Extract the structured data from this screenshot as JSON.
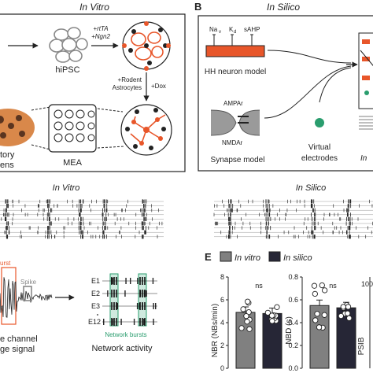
{
  "panel_a": {
    "title": "In Vitro",
    "hipsc_label": "hiPSC",
    "arrow1_label_1": "+rtTA",
    "arrow1_label_2": "+Ngn2",
    "arrow2_label_1": "+Rodent",
    "arrow2_label_2": "Astrocytes",
    "arrow2_label_3": "+Dox",
    "mea_label": "MEA",
    "left_label_1": "tory",
    "left_label_2": "ens"
  },
  "panel_b": {
    "letter": "B",
    "title": "In Silico",
    "channel_na": "Na",
    "channel_na_sub": "v",
    "channel_k": "K",
    "channel_k_sub": "d",
    "channel_sahp": "sAHP",
    "hh_label": "HH neuron model",
    "ampar": "AMPAr",
    "nmdar": "NMDAr",
    "synapse_label": "Synapse model",
    "virtual_1": "Virtual",
    "virtual_2": "electrodes",
    "right_partial": "In"
  },
  "raster": {
    "in_vitro_title": "In Vitro",
    "in_silico_title": "In Silico"
  },
  "panel_d": {
    "burst_label": "urst",
    "spike_label": "Spike",
    "electrodes": [
      "E1",
      "E2",
      "E3",
      "E12"
    ],
    "network_bursts": "Network bursts",
    "channel_label_1": "e channel",
    "channel_label_2": "ge signal",
    "network_activity": "Network activity"
  },
  "panel_e": {
    "letter": "E",
    "legend_in_vitro": "In vitro",
    "legend_in_silico": "In silico",
    "ns": "ns",
    "colors": {
      "in_vitro": "#808080",
      "in_silico": "#262636",
      "accent": "#e8562a",
      "green": "#2a9d6e"
    },
    "chart_data": [
      {
        "type": "bar",
        "ylabel": "NBR (NBs/min)",
        "ylim": [
          0,
          8
        ],
        "yticks": [
          "0",
          "2",
          "4",
          "6",
          "8"
        ],
        "series": [
          {
            "name": "In vitro",
            "values": [
              4.9
            ]
          },
          {
            "name": "In silico",
            "values": [
              4.8
            ]
          }
        ]
      },
      {
        "type": "bar",
        "ylabel": "NBD (s)",
        "ylim": [
          0,
          0.8
        ],
        "yticks": [
          "0.0",
          "0.2",
          "0.4",
          "0.6",
          "0.8"
        ],
        "series": [
          {
            "name": "In vitro",
            "values": [
              0.55
            ]
          },
          {
            "name": "In silico",
            "values": [
              0.53
            ]
          }
        ]
      },
      {
        "type": "bar",
        "ylabel": "PSIB",
        "yticks": [
          "100"
        ]
      }
    ]
  }
}
